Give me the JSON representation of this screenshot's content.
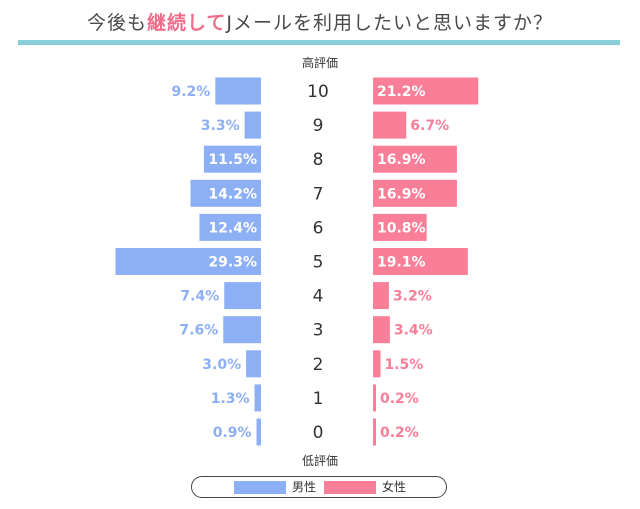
{
  "title": {
    "prefix": "今後も",
    "highlight": "継続して",
    "suffix": "Jメールを利用したいと思いますか？"
  },
  "colors": {
    "male": "#8daff5",
    "female": "#f97e98",
    "rule": "#86cfd6",
    "highlight": "#ef6d8b"
  },
  "chart_data": {
    "type": "bar",
    "orientation": "horizontal-butterfly",
    "top_label": "高評価",
    "bottom_label": "低評価",
    "categories": [
      "10",
      "9",
      "8",
      "7",
      "6",
      "5",
      "4",
      "3",
      "2",
      "1",
      "0"
    ],
    "series": [
      {
        "name": "男性",
        "values": [
          9.2,
          3.3,
          11.5,
          14.2,
          12.4,
          29.3,
          7.4,
          7.6,
          3.0,
          1.3,
          0.9
        ],
        "labels": [
          "9.2%",
          "3.3%",
          "11.5%",
          "14.2%",
          "12.4%",
          "29.3%",
          "7.4%",
          "7.6%",
          "3.0%",
          "1.3%",
          "0.9%"
        ]
      },
      {
        "name": "女性",
        "values": [
          21.2,
          6.7,
          16.9,
          16.9,
          10.8,
          19.1,
          3.2,
          3.4,
          1.5,
          0.2,
          0.2
        ],
        "labels": [
          "21.2%",
          "6.7%",
          "16.9%",
          "16.9%",
          "10.8%",
          "19.1%",
          "3.2%",
          "3.4%",
          "1.5%",
          "0.2%",
          "0.2%"
        ]
      }
    ],
    "legend": [
      "男性",
      "女性"
    ],
    "legend_position": "bottom"
  }
}
